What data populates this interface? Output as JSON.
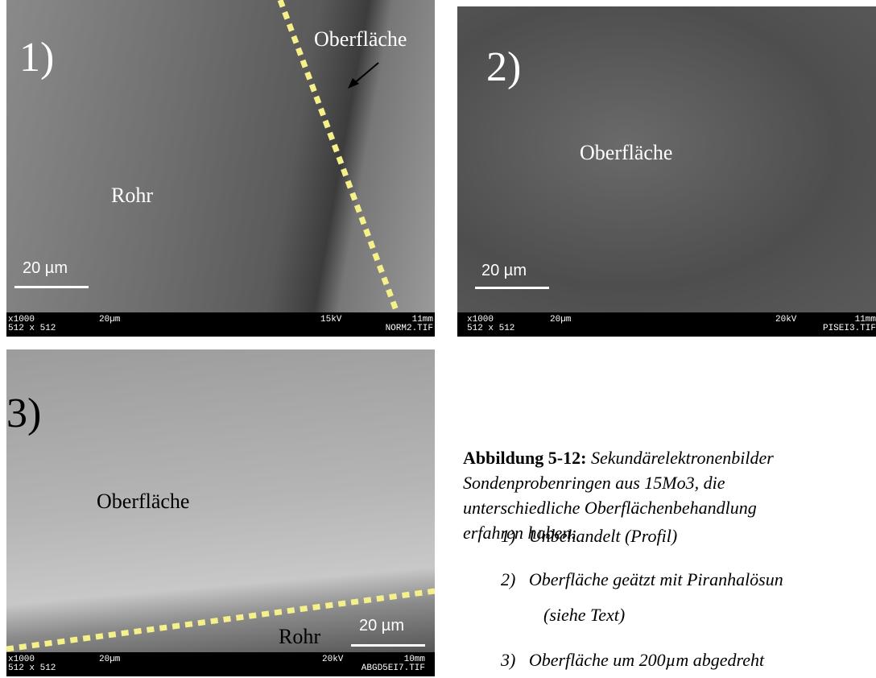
{
  "panels": [
    {
      "label": "1)",
      "annotations": [
        "Oberfläche",
        "Rohr"
      ],
      "scale_bar": "20 µm",
      "info_bar": [
        "x1000",
        "512 x 512",
        "20µm",
        "15kV",
        "11mm",
        "NORM2.TIF"
      ]
    },
    {
      "label": "2)",
      "annotations": [
        "Oberfläche"
      ],
      "scale_bar": "20 µm",
      "info_bar": [
        "x1000",
        "512 x 512",
        "20µm",
        "20kV",
        "11mm",
        "PISEI3.TIF"
      ]
    },
    {
      "label": "3)",
      "annotations": [
        "Oberfläche",
        "Rohr"
      ],
      "scale_bar": "20 µm",
      "info_bar": [
        "x1000",
        "512 x 512",
        "20µm",
        "20kV",
        "10mm",
        "ABGD5EI7.TIF"
      ]
    }
  ],
  "caption": {
    "label": "Abbildung 5-12:",
    "lines": [
      "Sekundärelektronenbilder",
      "Sondenprobenringen aus 15Mo3, die",
      "unterschiedliche Oberflächenbehandlung",
      "erfahren haben:"
    ],
    "items": [
      {
        "number": "1)",
        "lines": [
          "Unbehandelt (Profil)"
        ]
      },
      {
        "number": "2)",
        "lines": [
          "Oberfläche geätzt mit Piranhalösun",
          "(siehe Text)"
        ]
      },
      {
        "number": "3)",
        "lines": [
          "Oberfläche um 200µm abgedreht"
        ]
      }
    ]
  }
}
